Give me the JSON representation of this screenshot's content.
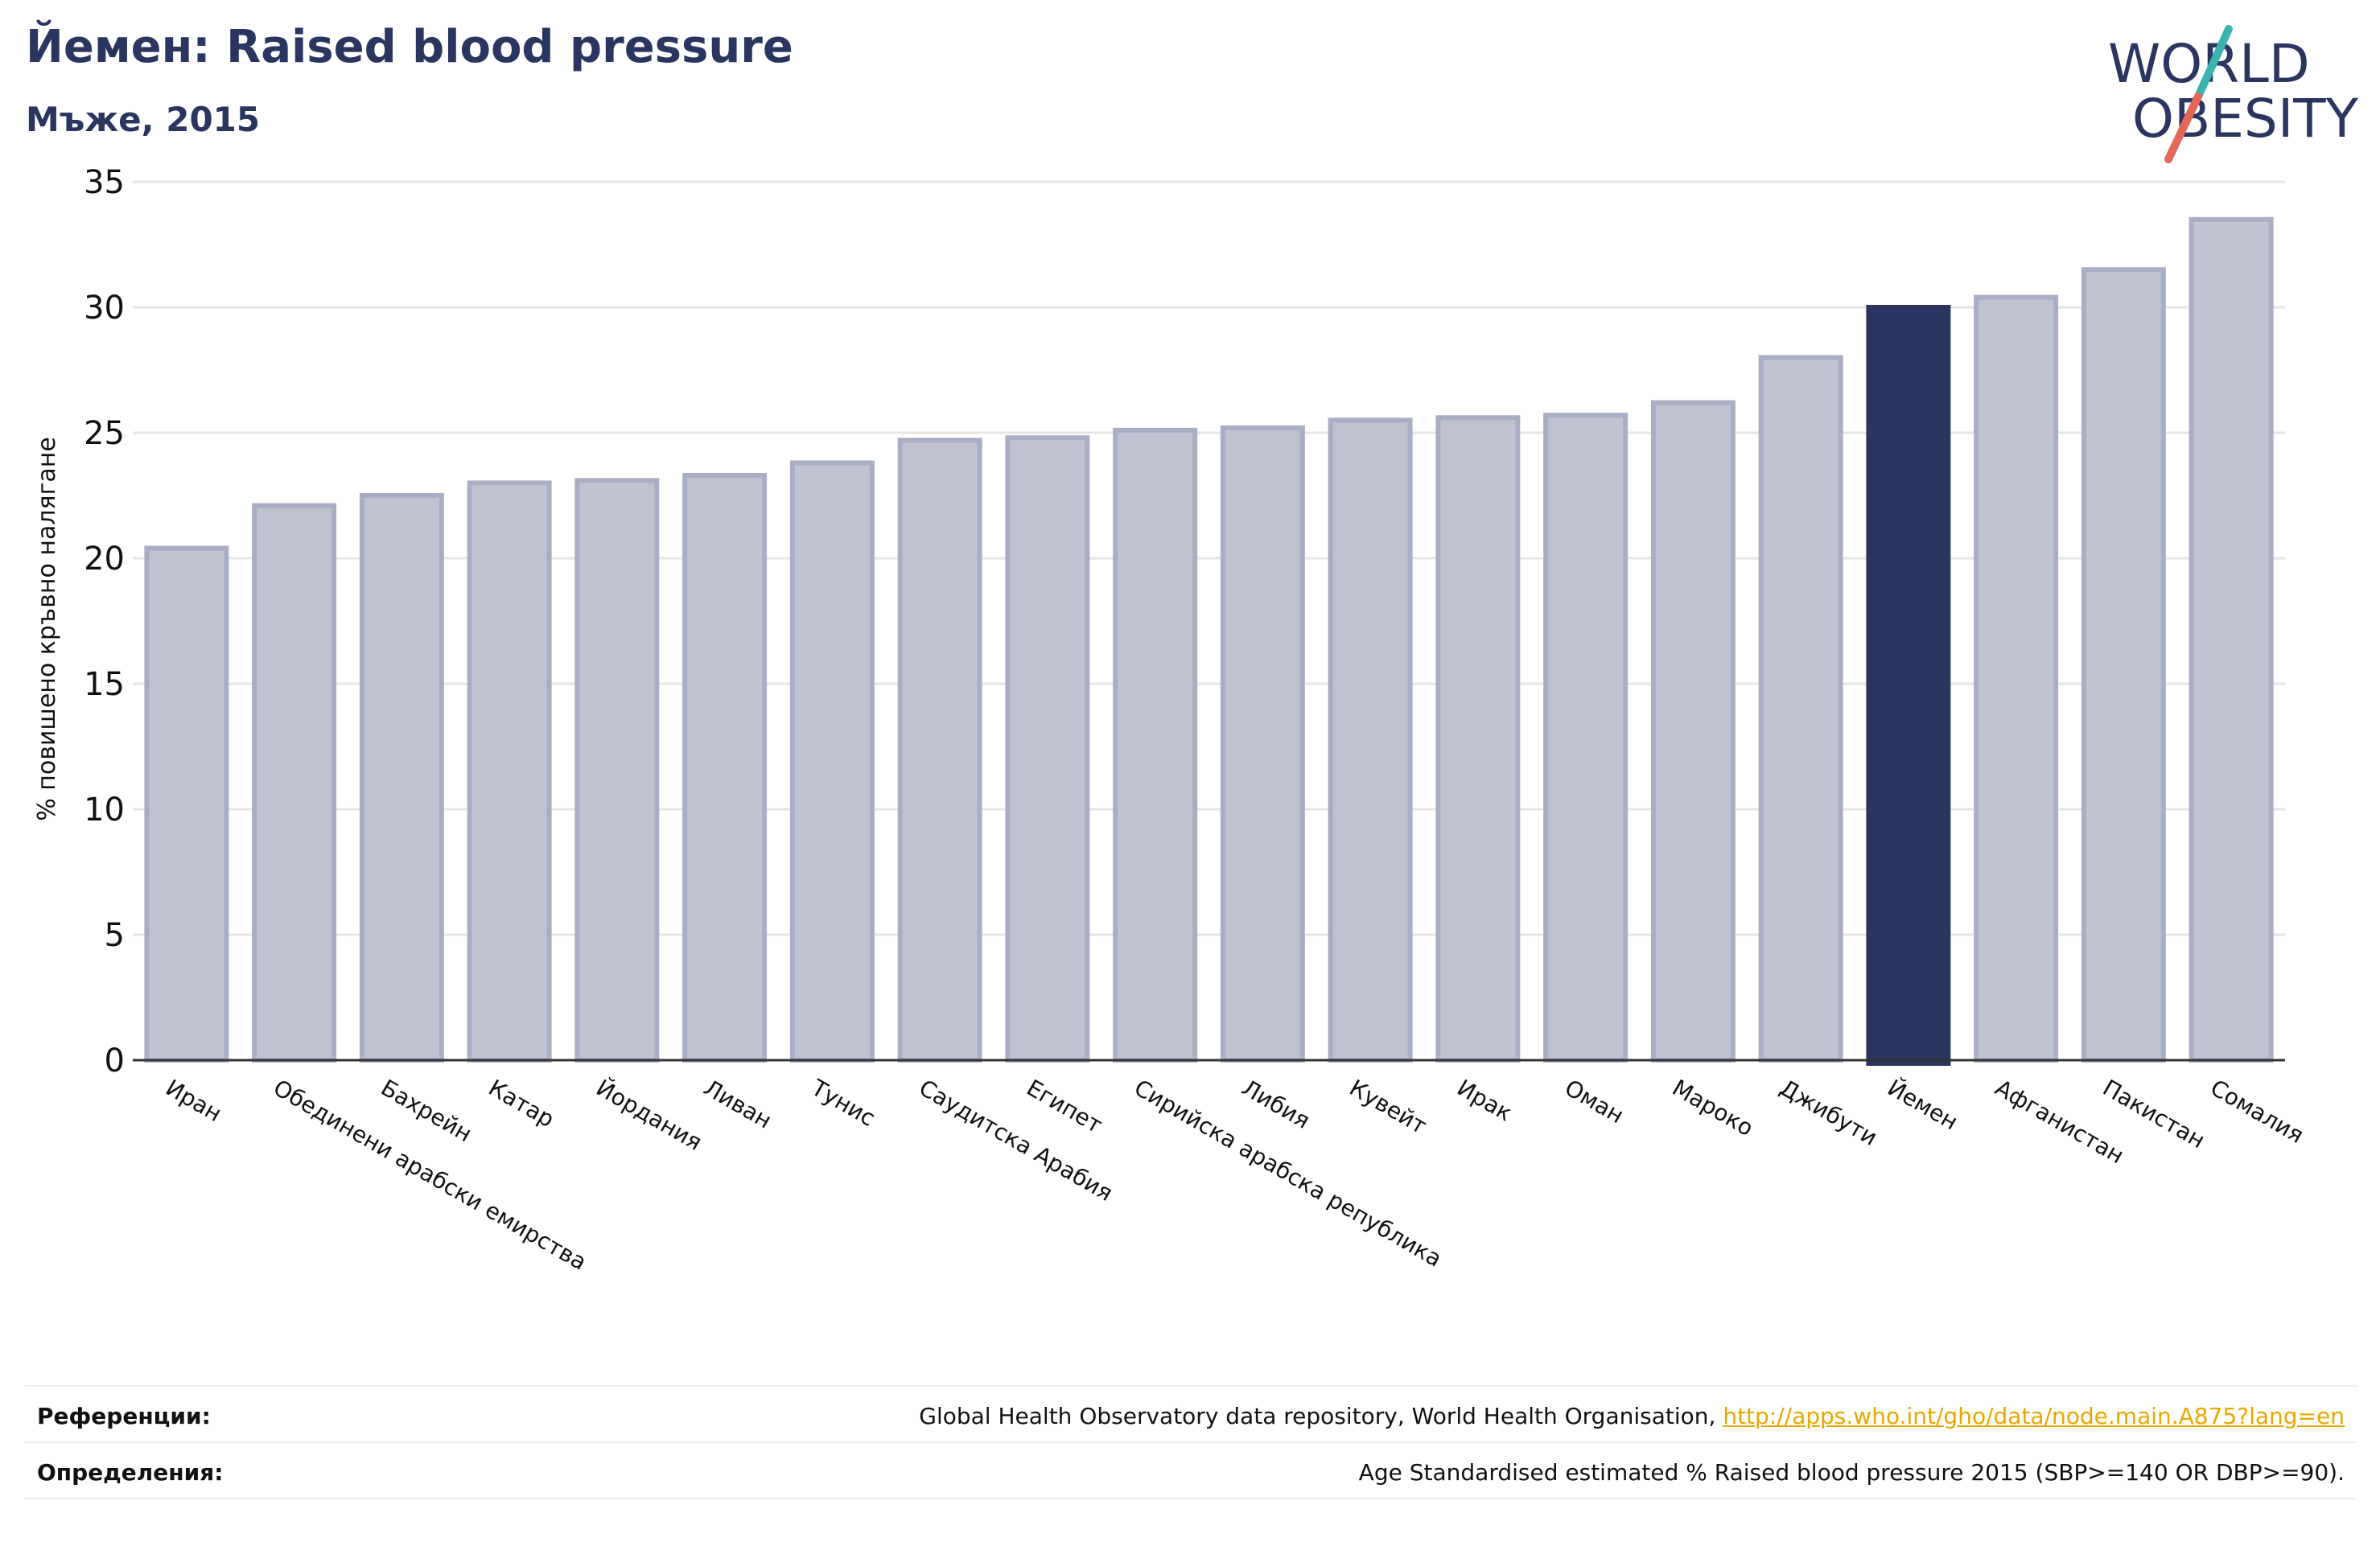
{
  "header": {
    "title": "Йемен: Raised blood pressure",
    "subtitle": "Мъже, 2015"
  },
  "logo": {
    "line1": "WORLD",
    "line2": "OBESITY",
    "colors": {
      "text": "#2a3560",
      "slash_top": "#3bb3b0",
      "slash_bottom": "#e4685a"
    }
  },
  "colors": {
    "bar_fill": "#bfc2d0",
    "bar_stroke": "#a9aec4",
    "highlight_fill": "#2a3560",
    "grid": "#e6e6e6",
    "axis": "#333333"
  },
  "chart_data": {
    "type": "bar",
    "ylabel": "% повишено кръвно налягане",
    "ylim": [
      0,
      35
    ],
    "yticks": [
      0,
      5,
      10,
      15,
      20,
      25,
      30,
      35
    ],
    "grid": true,
    "highlight": "Йемен",
    "categories": [
      "Иран",
      "Обединени арабски емирства",
      "Бахрейн",
      "Катар",
      "Йордания",
      "Ливан",
      "Тунис",
      "Саудитска Арабия",
      "Египет",
      "Сирийска арабска република",
      "Либия",
      "Кувейт",
      "Ирак",
      "Оман",
      "Мароко",
      "Джибути",
      "Йемен",
      "Афганистан",
      "Пакистан",
      "Сомалия"
    ],
    "values": [
      20.4,
      22.1,
      22.5,
      23.0,
      23.1,
      23.3,
      23.8,
      24.7,
      24.8,
      25.1,
      25.2,
      25.5,
      25.6,
      25.7,
      26.2,
      28.0,
      30.0,
      30.4,
      31.5,
      33.5
    ]
  },
  "footer": {
    "references_label": "Референции:",
    "references_text": "Global Health Observatory data repository, World Health Organisation, ",
    "references_link": "http://apps.who.int/gho/data/node.main.A875?lang=en",
    "definitions_label": "Определения:",
    "definitions_text": "Age Standardised estimated % Raised blood pressure 2015 (SBP>=140 OR DBP>=90)."
  }
}
